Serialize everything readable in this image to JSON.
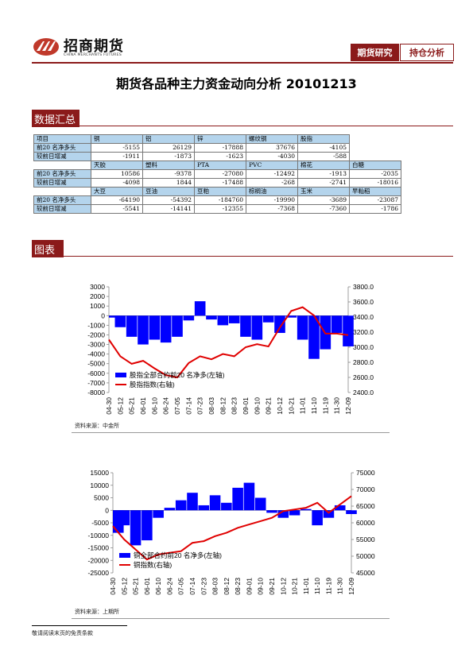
{
  "header": {
    "logo_cn": "招商期货",
    "logo_en": "CHINA MERCHANTS FUTURES",
    "tab_research": "期货研究",
    "tab_position": "持仓分析"
  },
  "title": "期货各品种主力资金动向分析 20101213",
  "sections": {
    "summary": "数据汇总",
    "charts": "图表"
  },
  "colors": {
    "brand": "#8b1a1a",
    "table_header": "#b4d4ec",
    "bar": "#0000ff",
    "line": "#e00000"
  },
  "table1": {
    "headers": [
      "项目",
      "铜",
      "铝",
      "锌",
      "螺纹钢",
      "股指"
    ],
    "rows": [
      [
        "前20 名净多头",
        "-5155",
        "26129",
        "-17888",
        "37676",
        "-4105"
      ],
      [
        "较前日增减",
        "-1911",
        "-1873",
        "-1623",
        "-4030",
        "-588"
      ]
    ]
  },
  "table2": {
    "headers": [
      "天胶",
      "塑料",
      "PTA",
      "PVC",
      "棉花",
      "白糖"
    ],
    "rows": [
      [
        "前20 名净多头",
        "10586",
        "-9378",
        "-27080",
        "-12492",
        "-1913",
        "-2035"
      ],
      [
        "较前日增减",
        "-4098",
        "1844",
        "-17488",
        "-268",
        "-2741",
        "-18016"
      ]
    ]
  },
  "table3": {
    "headers": [
      "大豆",
      "豆油",
      "豆粕",
      "棕榈油",
      "玉米",
      "早籼稻"
    ],
    "rows": [
      [
        "前20 名净多头",
        "-64190",
        "-54392",
        "-184760",
        "-19990",
        "-3689",
        "-23087"
      ],
      [
        "较前日增减",
        "-5541",
        "-14141",
        "-12355",
        "-7368",
        "-7360",
        "-1786"
      ]
    ]
  },
  "chart_data": [
    {
      "type": "bar",
      "x": [
        "04-30",
        "05-12",
        "05-21",
        "06-01",
        "06-10",
        "06-24",
        "07-05",
        "07-14",
        "07-23",
        "08-03",
        "08-12",
        "08-23",
        "09-01",
        "09-10",
        "09-21",
        "10-12",
        "10-21",
        "11-01",
        "11-10",
        "11-19",
        "11-30",
        "12-09"
      ],
      "series": [
        {
          "name": "股指全部合约前20 名净多(左轴)",
          "axis": "left",
          "type": "bar",
          "values": [
            -200,
            -1200,
            -2200,
            -3000,
            -2500,
            -2800,
            -2200,
            -500,
            1500,
            -400,
            -1000,
            -800,
            -2200,
            -2500,
            -700,
            -1800,
            -200,
            -2500,
            -4500,
            -3500,
            -1800,
            -3200
          ]
        },
        {
          "name": "股指指数(右轴)",
          "axis": "right",
          "type": "line",
          "values": [
            3100,
            2880,
            2780,
            2820,
            2720,
            2630,
            2600,
            2790,
            2880,
            2840,
            2910,
            2880,
            3000,
            3040,
            3010,
            3260,
            3480,
            3530,
            3420,
            3180,
            3180,
            3160
          ]
        }
      ],
      "y_left": {
        "ticks": [
          3000,
          2000,
          1000,
          0,
          -1000,
          -2000,
          -3000,
          -4000,
          -5000,
          -6000,
          -7000,
          -8000
        ],
        "range": [
          -8000,
          3000
        ]
      },
      "y_right": {
        "ticks": [
          "3800.0",
          "3600.0",
          "3400.0",
          "3200.0",
          "3000.0",
          "2800.0",
          "2600.0",
          "2400.0"
        ],
        "range": [
          2400,
          3800
        ]
      },
      "legend_position": "bottom-left",
      "source": "资料来源：中金所"
    },
    {
      "type": "bar",
      "x": [
        "04-30",
        "05-12",
        "05-21",
        "06-01",
        "06-10",
        "06-24",
        "07-05",
        "07-14",
        "07-23",
        "08-03",
        "08-12",
        "08-23",
        "09-01",
        "09-10",
        "09-21",
        "10-12",
        "10-21",
        "11-01",
        "11-10",
        "11-19",
        "11-30",
        "12-09"
      ],
      "series": [
        {
          "name": "铜全部合约前20 名净多(左轴)",
          "axis": "left",
          "type": "bar",
          "values": [
            -9000,
            -6000,
            -14000,
            -12000,
            -3000,
            1000,
            4000,
            7000,
            2000,
            6000,
            3000,
            9000,
            11000,
            5000,
            -1000,
            -3000,
            -2000,
            500,
            -6000,
            -3000,
            2000,
            -1500
          ]
        },
        {
          "name": "铜指数(右轴)",
          "axis": "right",
          "type": "line",
          "values": [
            59000,
            55000,
            52000,
            49000,
            50500,
            51000,
            51500,
            54000,
            54500,
            56000,
            57000,
            58500,
            59500,
            60500,
            61500,
            63500,
            64000,
            64500,
            66000,
            63000,
            65500,
            68000
          ]
        }
      ],
      "y_left": {
        "ticks": [
          15000,
          10000,
          5000,
          0,
          -5000,
          -10000,
          -15000,
          -20000,
          -25000
        ],
        "range": [
          -25000,
          15000
        ]
      },
      "y_right": {
        "ticks": [
          75000,
          70000,
          65000,
          60000,
          55000,
          50000,
          45000
        ],
        "range": [
          45000,
          75000
        ]
      },
      "legend_position": "bottom-left",
      "source": "资料来源：上期所"
    }
  ],
  "footer": "敬请阅读末页的免责条款"
}
